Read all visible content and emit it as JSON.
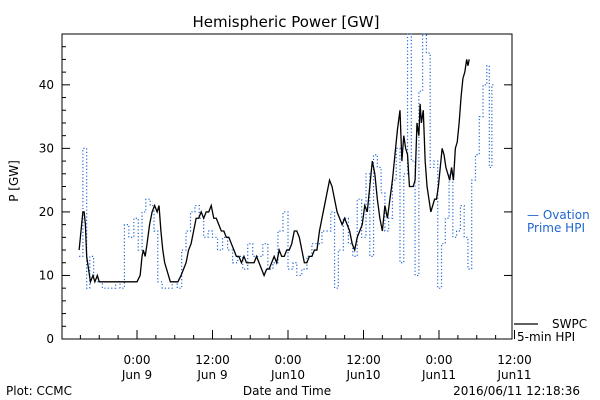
{
  "chart_data": {
    "type": "line",
    "title": "Hemispheric Power [GW]",
    "xlabel": "Date and Time",
    "ylabel": "P [GW]",
    "ylim": [
      0,
      48
    ],
    "xlim_hours": [
      -21,
      12
    ],
    "grid": false,
    "y_ticks": [
      0,
      10,
      20,
      30,
      40
    ],
    "y_tick_labels": [
      "0",
      "10",
      "20",
      "30",
      "40"
    ],
    "x_ticks": [
      {
        "h": -12,
        "time": "0:00",
        "date": "Jun 9"
      },
      {
        "h": 0,
        "time": "12:00",
        "date": "Jun 9"
      },
      {
        "h": 12,
        "time": "0:00",
        "date": "Jun10"
      },
      {
        "h": 24,
        "time": "12:00",
        "date": "Jun10"
      },
      {
        "h": 36,
        "time": "0:00",
        "date": "Jun11"
      },
      {
        "h": 48,
        "time": "12:00",
        "date": "Jun11"
      }
    ],
    "series": [
      {
        "name": "Ovation Prime HPI",
        "label_lines": [
          "— Ovation",
          "Prime HPI"
        ],
        "color": "#1f66d0",
        "style": "dotted-step",
        "points": [
          [
            -21.2,
            13
          ],
          [
            -20.6,
            30
          ],
          [
            -20.0,
            8
          ],
          [
            -19.5,
            13
          ],
          [
            -18.9,
            10
          ],
          [
            -18.2,
            9
          ],
          [
            -17.5,
            8
          ],
          [
            -16.3,
            8
          ],
          [
            -15.4,
            9
          ],
          [
            -14.7,
            8
          ],
          [
            -14.0,
            18
          ],
          [
            -13.3,
            16
          ],
          [
            -12.5,
            19
          ],
          [
            -11.8,
            14
          ],
          [
            -11.2,
            20
          ],
          [
            -10.6,
            22
          ],
          [
            -9.9,
            21
          ],
          [
            -9.3,
            17
          ],
          [
            -8.7,
            9
          ],
          [
            -8.0,
            8
          ],
          [
            -7.3,
            8
          ],
          [
            -6.4,
            9
          ],
          [
            -5.6,
            8
          ],
          [
            -4.9,
            14
          ],
          [
            -4.2,
            17
          ],
          [
            -3.5,
            20
          ],
          [
            -2.8,
            21
          ],
          [
            -2.1,
            19
          ],
          [
            -1.4,
            16
          ],
          [
            -0.7,
            17
          ],
          [
            0.0,
            16
          ],
          [
            0.8,
            14
          ],
          [
            1.6,
            16
          ],
          [
            2.4,
            14
          ],
          [
            3.2,
            12
          ],
          [
            4.0,
            13
          ],
          [
            4.8,
            11
          ],
          [
            5.6,
            15
          ],
          [
            6.4,
            13
          ],
          [
            7.2,
            13
          ],
          [
            8.0,
            15
          ],
          [
            8.8,
            11
          ],
          [
            9.6,
            12
          ],
          [
            10.4,
            17
          ],
          [
            11.2,
            20
          ],
          [
            12.0,
            11
          ],
          [
            12.8,
            12
          ],
          [
            13.4,
            10
          ],
          [
            14.2,
            11
          ],
          [
            15.0,
            13
          ],
          [
            15.8,
            15
          ],
          [
            16.6,
            15
          ],
          [
            17.4,
            17
          ],
          [
            18.2,
            17
          ],
          [
            18.8,
            20
          ],
          [
            19.4,
            8
          ],
          [
            20.0,
            14
          ],
          [
            20.8,
            19
          ],
          [
            21.6,
            15
          ],
          [
            22.3,
            13
          ],
          [
            23.0,
            22
          ],
          [
            23.7,
            16
          ],
          [
            24.4,
            26
          ],
          [
            25.0,
            13
          ],
          [
            25.6,
            29
          ],
          [
            26.2,
            27
          ],
          [
            26.8,
            23
          ],
          [
            27.4,
            17
          ],
          [
            28.0,
            19
          ],
          [
            28.6,
            25
          ],
          [
            29.2,
            30
          ],
          [
            29.8,
            12
          ],
          [
            30.4,
            26
          ],
          [
            31.0,
            48
          ],
          [
            31.6,
            28
          ],
          [
            32.2,
            10
          ],
          [
            32.8,
            39
          ],
          [
            33.4,
            48
          ],
          [
            34.0,
            45
          ],
          [
            34.6,
            27
          ],
          [
            35.2,
            28
          ],
          [
            35.8,
            8
          ],
          [
            36.4,
            15
          ],
          [
            37.0,
            19
          ],
          [
            37.6,
            26
          ],
          [
            38.2,
            16
          ],
          [
            38.8,
            17
          ],
          [
            39.4,
            21
          ],
          [
            40.0,
            16
          ],
          [
            40.6,
            11
          ],
          [
            41.2,
            25
          ],
          [
            41.8,
            29
          ],
          [
            42.4,
            35
          ],
          [
            43.0,
            40
          ],
          [
            43.6,
            43
          ],
          [
            44.0,
            27
          ],
          [
            44.4,
            40
          ]
        ]
      },
      {
        "name": "SWPC 5-min HPI",
        "label_lines": [
          "SWPC",
          "5-min HPI"
        ],
        "color": "#000000",
        "style": "solid",
        "points": [
          [
            -21.2,
            14
          ],
          [
            -21.0,
            16
          ],
          [
            -20.8,
            18
          ],
          [
            -20.6,
            20
          ],
          [
            -20.4,
            20
          ],
          [
            -20.2,
            18
          ],
          [
            -20.0,
            13
          ],
          [
            -19.7,
            11
          ],
          [
            -19.4,
            9
          ],
          [
            -19.0,
            10
          ],
          [
            -18.7,
            9
          ],
          [
            -18.3,
            10
          ],
          [
            -18.0,
            9
          ],
          [
            -17.5,
            9
          ],
          [
            -17.0,
            9
          ],
          [
            -16.5,
            9
          ],
          [
            -16.0,
            9
          ],
          [
            -15.5,
            9
          ],
          [
            -15.0,
            9
          ],
          [
            -14.5,
            9
          ],
          [
            -14.0,
            9
          ],
          [
            -13.5,
            9
          ],
          [
            -13.0,
            9
          ],
          [
            -12.5,
            9
          ],
          [
            -12.0,
            9
          ],
          [
            -11.5,
            10
          ],
          [
            -11.2,
            13
          ],
          [
            -11.0,
            14
          ],
          [
            -10.7,
            13
          ],
          [
            -10.4,
            15
          ],
          [
            -10.0,
            18
          ],
          [
            -9.6,
            20
          ],
          [
            -9.2,
            21
          ],
          [
            -8.8,
            20
          ],
          [
            -8.5,
            21
          ],
          [
            -8.2,
            17
          ],
          [
            -7.9,
            14
          ],
          [
            -7.6,
            12
          ],
          [
            -7.3,
            11
          ],
          [
            -7.0,
            10
          ],
          [
            -6.7,
            9
          ],
          [
            -6.3,
            9
          ],
          [
            -5.9,
            9
          ],
          [
            -5.5,
            9
          ],
          [
            -5.0,
            10
          ],
          [
            -4.6,
            11
          ],
          [
            -4.2,
            12
          ],
          [
            -3.8,
            14
          ],
          [
            -3.4,
            15
          ],
          [
            -3.0,
            17
          ],
          [
            -2.6,
            19
          ],
          [
            -2.2,
            19
          ],
          [
            -1.8,
            20
          ],
          [
            -1.4,
            19
          ],
          [
            -1.0,
            20
          ],
          [
            -0.6,
            20
          ],
          [
            -0.2,
            21
          ],
          [
            0.2,
            19
          ],
          [
            0.6,
            19
          ],
          [
            1.0,
            18
          ],
          [
            1.4,
            17
          ],
          [
            1.8,
            17
          ],
          [
            2.2,
            16
          ],
          [
            2.6,
            16
          ],
          [
            3.0,
            15
          ],
          [
            3.4,
            14
          ],
          [
            3.8,
            13
          ],
          [
            4.2,
            13
          ],
          [
            4.6,
            12
          ],
          [
            5.0,
            13
          ],
          [
            5.4,
            12
          ],
          [
            5.8,
            12
          ],
          [
            6.2,
            12
          ],
          [
            6.6,
            12
          ],
          [
            7.0,
            13
          ],
          [
            7.4,
            12
          ],
          [
            7.8,
            11
          ],
          [
            8.2,
            10
          ],
          [
            8.6,
            11
          ],
          [
            9.0,
            11
          ],
          [
            9.4,
            12
          ],
          [
            9.8,
            13
          ],
          [
            10.2,
            12
          ],
          [
            10.6,
            14
          ],
          [
            11.0,
            13
          ],
          [
            11.4,
            13
          ],
          [
            11.8,
            14
          ],
          [
            12.2,
            14
          ],
          [
            12.6,
            15
          ],
          [
            13.0,
            17
          ],
          [
            13.4,
            17
          ],
          [
            13.8,
            16
          ],
          [
            14.2,
            14
          ],
          [
            14.6,
            12
          ],
          [
            15.0,
            12
          ],
          [
            15.4,
            13
          ],
          [
            15.8,
            13
          ],
          [
            16.2,
            14
          ],
          [
            16.6,
            14
          ],
          [
            17.0,
            17
          ],
          [
            17.4,
            19
          ],
          [
            17.8,
            21
          ],
          [
            18.2,
            23
          ],
          [
            18.6,
            25
          ],
          [
            19.0,
            24
          ],
          [
            19.4,
            22
          ],
          [
            19.8,
            20
          ],
          [
            20.2,
            19
          ],
          [
            20.6,
            18
          ],
          [
            21.0,
            19
          ],
          [
            21.4,
            18
          ],
          [
            21.8,
            17
          ],
          [
            22.2,
            15
          ],
          [
            22.6,
            14
          ],
          [
            23.0,
            16
          ],
          [
            23.4,
            17
          ],
          [
            23.8,
            18
          ],
          [
            24.2,
            21
          ],
          [
            24.6,
            20
          ],
          [
            25.0,
            24
          ],
          [
            25.4,
            28
          ],
          [
            25.8,
            26
          ],
          [
            26.2,
            22
          ],
          [
            26.6,
            19
          ],
          [
            27.0,
            17
          ],
          [
            27.4,
            21
          ],
          [
            27.8,
            19
          ],
          [
            28.2,
            22
          ],
          [
            28.6,
            25
          ],
          [
            29.0,
            29
          ],
          [
            29.4,
            33
          ],
          [
            29.8,
            36
          ],
          [
            30.1,
            28
          ],
          [
            30.4,
            32
          ],
          [
            30.7,
            30
          ],
          [
            31.0,
            29
          ],
          [
            31.3,
            24
          ],
          [
            31.6,
            24
          ],
          [
            31.9,
            24
          ],
          [
            32.2,
            25
          ],
          [
            32.5,
            34
          ],
          [
            32.8,
            32
          ],
          [
            33.0,
            37
          ],
          [
            33.2,
            34
          ],
          [
            33.5,
            36
          ],
          [
            33.8,
            28
          ],
          [
            34.1,
            24
          ],
          [
            34.4,
            22
          ],
          [
            34.7,
            20
          ],
          [
            35.0,
            21
          ],
          [
            35.3,
            22
          ],
          [
            35.6,
            22
          ],
          [
            35.9,
            24
          ],
          [
            36.2,
            27
          ],
          [
            36.5,
            30
          ],
          [
            36.8,
            29
          ],
          [
            37.1,
            27
          ],
          [
            37.4,
            26
          ],
          [
            37.7,
            25
          ],
          [
            38.0,
            27
          ],
          [
            38.3,
            25
          ],
          [
            38.6,
            30
          ],
          [
            38.9,
            31
          ],
          [
            39.2,
            34
          ],
          [
            39.5,
            38
          ],
          [
            39.8,
            41
          ],
          [
            40.1,
            42
          ],
          [
            40.4,
            44
          ],
          [
            40.6,
            43
          ],
          [
            40.8,
            44
          ]
        ]
      }
    ]
  },
  "footer": {
    "left": "Plot: CCMC",
    "right": "2016/06/11 12:18:36"
  }
}
